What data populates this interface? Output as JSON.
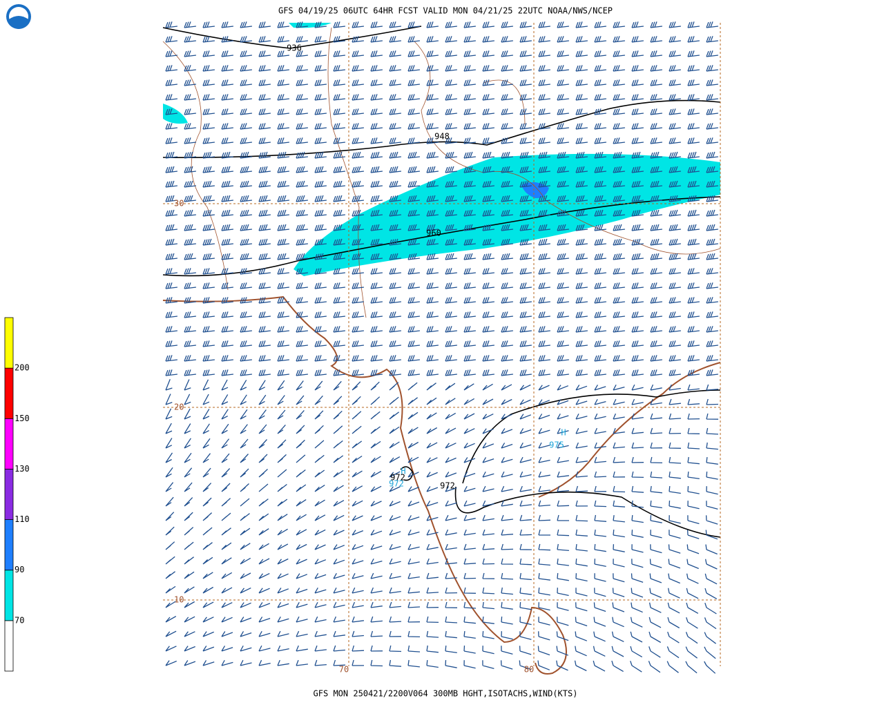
{
  "header": {
    "title": "GFS 04/19/25 06UTC 64HR FCST VALID MON 04/21/25 22UTC NOAA/NWS/NCEP"
  },
  "footer": {
    "caption": "GFS MON 250421/2200V064 300MB HGHT,ISOTACHS,WIND(KTS)"
  },
  "legend": {
    "labels": [
      "70",
      "90",
      "110",
      "130",
      "150",
      "200"
    ],
    "colors": [
      "#ffffff",
      "#00e5e5",
      "#1e7fff",
      "#8a2be2",
      "#ff00ff",
      "#ff0000",
      "#ffff00"
    ]
  },
  "map": {
    "lat_labels": [
      "30",
      "20",
      "10"
    ],
    "lon_labels": [
      "70",
      "80"
    ],
    "contour_labels": [
      "936",
      "948",
      "960",
      "972",
      "972"
    ],
    "highs": [
      {
        "symbol": "H",
        "value": "972"
      },
      {
        "symbol": "H",
        "value": "975"
      }
    ]
  }
}
